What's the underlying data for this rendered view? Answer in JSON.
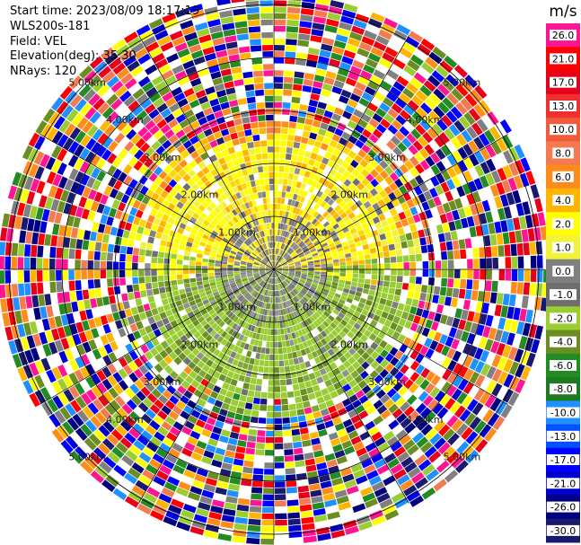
{
  "header": {
    "start_time": "Start time: 2023/08/09 18:17:19",
    "station": "WLS200s-181",
    "field": "Field: VEL",
    "elevation": "Elevation(deg): 35.30",
    "nrays": "NRays: 120"
  },
  "colorbar": {
    "unit": "m/s",
    "ticks": [
      "26.0",
      "21.0",
      "17.0",
      "13.0",
      "10.0",
      "8.0",
      "6.0",
      "4.0",
      "2.0",
      "1.0",
      "0.0",
      "-1.0",
      "-2.0",
      "-4.0",
      "-6.0",
      "-8.0",
      "-10.0",
      "-13.0",
      "-17.0",
      "-21.0",
      "-26.0",
      "-30.0"
    ],
    "colors": [
      "#ff1493",
      "#ff0000",
      "#e8001a",
      "#f03030",
      "#f25a3c",
      "#f47a50",
      "#ff8c1a",
      "#ffb400",
      "#ffff00",
      "#f2f23c",
      "#808080",
      "#6e6e6e",
      "#9acd32",
      "#6b8e23",
      "#228b22",
      "#1e7a1e",
      "#1e90ff",
      "#0050ff",
      "#0000ff",
      "#0000cd",
      "#000080",
      "#191970"
    ]
  },
  "chart_data": {
    "type": "ppi",
    "field": "VEL",
    "units": "m/s",
    "nrays": 120,
    "elevation_deg": 35.3,
    "range_rings_km": [
      1.0,
      2.0,
      3.0,
      4.0,
      5.0
    ],
    "range_ring_labels": [
      "1.00km",
      "2.00km",
      "3.00km",
      "4.00km",
      "5.00km"
    ],
    "inner_zones": [
      {
        "max_km": 1.0,
        "field": "grey near-zero velocities with scattered yellow/green"
      },
      {
        "max_km": 2.0,
        "north_half": "yellow (1–2 m/s)",
        "south_half": "olive green (-1 to -2 m/s)"
      },
      {
        "max_km": 2.8,
        "north_half": "yellow/orange",
        "south_half": "green"
      },
      {
        "max_km": 5.9,
        "field": "noise (random colors)"
      }
    ],
    "grid": true
  }
}
